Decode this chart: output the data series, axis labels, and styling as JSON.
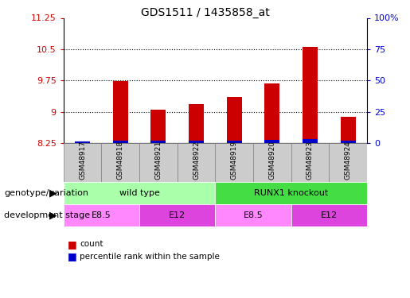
{
  "title": "GDS1511 / 1435858_at",
  "samples": [
    "GSM48917",
    "GSM48918",
    "GSM48921",
    "GSM48922",
    "GSM48919",
    "GSM48920",
    "GSM48923",
    "GSM48924"
  ],
  "red_values": [
    8.27,
    9.73,
    9.05,
    9.18,
    9.35,
    9.68,
    10.55,
    8.88
  ],
  "blue_bar_heights": [
    0.04,
    0.06,
    0.05,
    0.06,
    0.06,
    0.07,
    0.09,
    0.05
  ],
  "ylim_left": [
    8.25,
    11.25
  ],
  "ylim_right": [
    0,
    100
  ],
  "yticks_left": [
    8.25,
    9.0,
    9.75,
    10.5,
    11.25
  ],
  "ytick_labels_left": [
    "8.25",
    "9",
    "9.75",
    "10.5",
    "11.25"
  ],
  "yticks_right": [
    0,
    25,
    50,
    75,
    100
  ],
  "ytick_labels_right": [
    "0",
    "25",
    "50",
    "75",
    "100%"
  ],
  "hlines": [
    9.0,
    9.75,
    10.5
  ],
  "bar_bottom": 8.25,
  "genotype_groups": [
    {
      "label": "wild type",
      "start": 0,
      "end": 4,
      "color": "#AAFFAA"
    },
    {
      "label": "RUNX1 knockout",
      "start": 4,
      "end": 8,
      "color": "#44DD44"
    }
  ],
  "stage_groups": [
    {
      "label": "E8.5",
      "start": 0,
      "end": 2,
      "color": "#FF88FF"
    },
    {
      "label": "E12",
      "start": 2,
      "end": 4,
      "color": "#DD44DD"
    },
    {
      "label": "E8.5",
      "start": 4,
      "end": 6,
      "color": "#FF88FF"
    },
    {
      "label": "E12",
      "start": 6,
      "end": 8,
      "color": "#DD44DD"
    }
  ],
  "legend_items": [
    {
      "label": "count",
      "color": "#CC0000"
    },
    {
      "label": "percentile rank within the sample",
      "color": "#0000CC"
    }
  ],
  "bar_width": 0.4,
  "red_color": "#CC0000",
  "blue_color": "#0000CC",
  "background_color": "#ffffff",
  "plot_bg_color": "#ffffff",
  "left_tick_color": "#CC0000",
  "right_tick_color": "#0000CC",
  "sample_box_color": "#CCCCCC",
  "genotype_label": "genotype/variation",
  "stage_label": "development stage"
}
